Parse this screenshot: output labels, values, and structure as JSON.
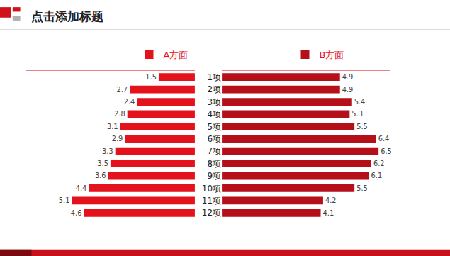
{
  "chart_data": {
    "type": "bar",
    "orientation": "horizontal",
    "title": "点击添加标题",
    "categories": [
      "1项",
      "2项",
      "3项",
      "4项",
      "5项",
      "6项",
      "7项",
      "8项",
      "9项",
      "10项",
      "11项",
      "12项"
    ],
    "series": [
      {
        "name": "A方面",
        "color": "#e3121c",
        "values": [
          1.5,
          2.7,
          2.4,
          2.8,
          3.1,
          2.9,
          3.3,
          3.5,
          3.6,
          4.4,
          5.1,
          4.6
        ]
      },
      {
        "name": "B方面",
        "color": "#b50f1a",
        "values": [
          4.9,
          4.9,
          5.4,
          5.3,
          5.5,
          6.4,
          6.5,
          6.2,
          6.1,
          5.5,
          4.2,
          4.1
        ]
      }
    ],
    "xlim": [
      0,
      7
    ],
    "data_labels": true,
    "tick_labels": "y",
    "grid": false,
    "legend": "top"
  }
}
